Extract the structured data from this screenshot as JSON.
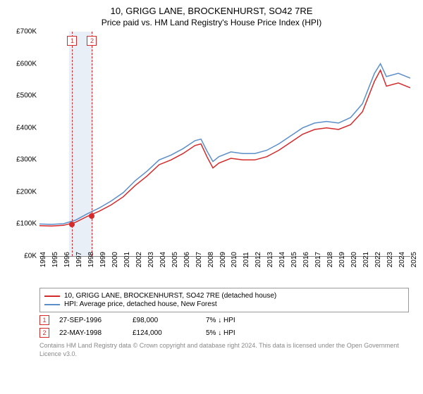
{
  "title": "10, GRIGG LANE, BROCKENHURST, SO42 7RE",
  "subtitle": "Price paid vs. HM Land Registry's House Price Index (HPI)",
  "chart": {
    "type": "line",
    "background_color": "#ffffff",
    "grid_color": "#e0e0e0",
    "ylim": [
      0,
      700000
    ],
    "ytick_step": 100000,
    "y_prefix": "£",
    "y_suffix": "K",
    "y_ticks": [
      "£0K",
      "£100K",
      "£200K",
      "£300K",
      "£400K",
      "£500K",
      "£600K",
      "£700K"
    ],
    "xlim": [
      1994,
      2025
    ],
    "xtick_step": 1,
    "x_ticks": [
      1994,
      1995,
      1996,
      1997,
      1998,
      1999,
      2000,
      2001,
      2002,
      2003,
      2004,
      2005,
      2006,
      2007,
      2008,
      2009,
      2010,
      2011,
      2012,
      2013,
      2014,
      2015,
      2016,
      2017,
      2018,
      2019,
      2020,
      2021,
      2022,
      2023,
      2024,
      2025
    ],
    "tick_fontsize": 10,
    "title_fontsize": 13,
    "line_width": 1.5,
    "series": [
      {
        "id": "property",
        "label": "10, GRIGG LANE, BROCKENHURST, SO42 7RE (detached house)",
        "color": "#d42a2a",
        "x": [
          1994,
          1995,
          1996,
          1997,
          1998,
          1999,
          2000,
          2001,
          2002,
          2003,
          2004,
          2005,
          2006,
          2007,
          2007.5,
          2008,
          2008.5,
          2009,
          2010,
          2011,
          2012,
          2013,
          2014,
          2015,
          2016,
          2017,
          2018,
          2019,
          2020,
          2021,
          2022,
          2022.5,
          2023,
          2024,
          2025
        ],
        "y": [
          95000,
          94000,
          96000,
          105000,
          124000,
          140000,
          160000,
          185000,
          220000,
          250000,
          285000,
          300000,
          320000,
          345000,
          350000,
          310000,
          275000,
          290000,
          305000,
          300000,
          300000,
          310000,
          330000,
          355000,
          380000,
          395000,
          400000,
          395000,
          410000,
          450000,
          545000,
          580000,
          530000,
          540000,
          525000
        ]
      },
      {
        "id": "hpi",
        "label": "HPI: Average price, detached house, New Forest",
        "color": "#5b8fc9",
        "x": [
          1994,
          1995,
          1996,
          1997,
          1998,
          1999,
          2000,
          2001,
          2002,
          2003,
          2004,
          2005,
          2006,
          2007,
          2007.5,
          2008,
          2008.5,
          2009,
          2010,
          2011,
          2012,
          2013,
          2014,
          2015,
          2016,
          2017,
          2018,
          2019,
          2020,
          2021,
          2022,
          2022.5,
          2023,
          2024,
          2025
        ],
        "y": [
          100000,
          99000,
          101000,
          112000,
          132000,
          150000,
          172000,
          198000,
          235000,
          265000,
          300000,
          315000,
          335000,
          360000,
          365000,
          328000,
          295000,
          310000,
          325000,
          320000,
          320000,
          330000,
          350000,
          375000,
          400000,
          415000,
          420000,
          415000,
          432000,
          475000,
          570000,
          600000,
          560000,
          570000,
          555000
        ]
      }
    ],
    "shaded_ranges": [
      {
        "x0": 1996.5,
        "x1": 1998.5,
        "color": "#e8eff7"
      }
    ],
    "event_markers": [
      {
        "id": 1,
        "x": 1996.74,
        "y": 98000,
        "label_top": true
      },
      {
        "id": 2,
        "x": 1998.39,
        "y": 124000,
        "label_top": true
      }
    ]
  },
  "legend": {
    "position": "bottom",
    "border_color": "#999999",
    "items": [
      {
        "color": "#d42a2a",
        "text": "10, GRIGG LANE, BROCKENHURST, SO42 7RE (detached house)"
      },
      {
        "color": "#5b8fc9",
        "text": "HPI: Average price, detached house, New Forest"
      }
    ]
  },
  "events": [
    {
      "badge": "1",
      "date": "27-SEP-1996",
      "price": "£98,000",
      "delta": "7% ↓ HPI"
    },
    {
      "badge": "2",
      "date": "22-MAY-1998",
      "price": "£124,000",
      "delta": "5% ↓ HPI"
    }
  ],
  "attribution": "Contains HM Land Registry data © Crown copyright and database right 2024. This data is licensed under the Open Government Licence v3.0."
}
